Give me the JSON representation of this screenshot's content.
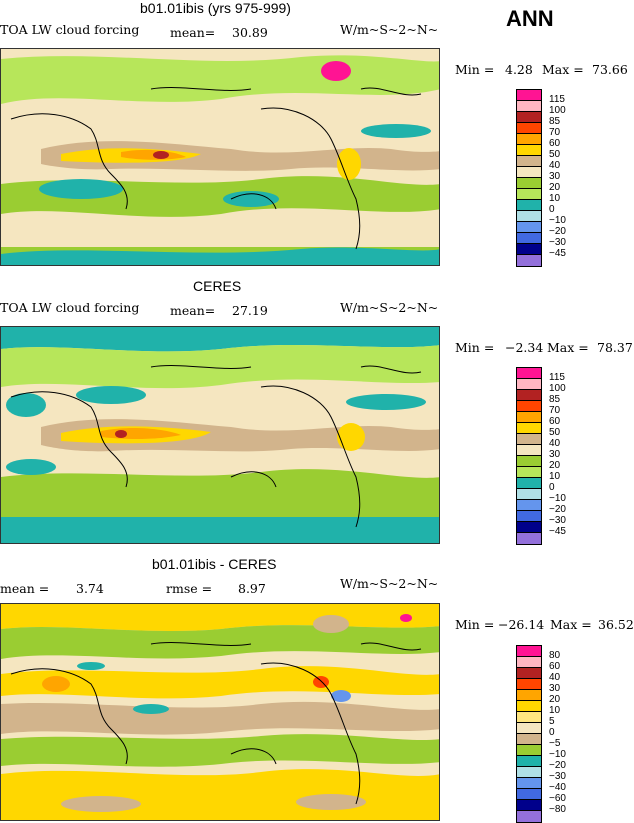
{
  "page": {
    "season": "ANN"
  },
  "chart_data": [
    {
      "type": "heatmap",
      "title": "b01.01ibis (yrs 975-999)",
      "field": "TOA LW cloud forcing",
      "units": "W/m~S~2~N~",
      "stat1_label": "mean=",
      "stat1_value": "30.89",
      "min_label": "Min =",
      "min_value": "4.28",
      "max_label": "Max =",
      "max_value": "73.66",
      "legend_levels": [
        "115",
        "100",
        "85",
        "70",
        "60",
        "50",
        "40",
        "30",
        "20",
        "10",
        "0",
        "−10",
        "−20",
        "−30",
        "−45"
      ],
      "legend_colors": [
        "#ff1493",
        "#ffb6c1",
        "#b22222",
        "#ff4500",
        "#ffa500",
        "#ffd700",
        "#d2b48c",
        "#f5e6c0",
        "#9acd32",
        "#b7e65a",
        "#20b2aa",
        "#b0e0e6",
        "#6495ed",
        "#4169e1",
        "#00008b",
        "#9370db"
      ]
    },
    {
      "type": "heatmap",
      "title": "CERES",
      "field": "TOA LW cloud forcing",
      "units": "W/m~S~2~N~",
      "stat1_label": "mean=",
      "stat1_value": "27.19",
      "min_label": "Min =",
      "min_value": "−2.34",
      "max_label": "Max =",
      "max_value": "78.37",
      "legend_levels": [
        "115",
        "100",
        "85",
        "70",
        "60",
        "50",
        "40",
        "30",
        "20",
        "10",
        "0",
        "−10",
        "−20",
        "−30",
        "−45"
      ],
      "legend_colors": [
        "#ff1493",
        "#ffb6c1",
        "#b22222",
        "#ff4500",
        "#ffa500",
        "#ffd700",
        "#d2b48c",
        "#f5e6c0",
        "#9acd32",
        "#b7e65a",
        "#20b2aa",
        "#b0e0e6",
        "#6495ed",
        "#4169e1",
        "#00008b",
        "#9370db"
      ]
    },
    {
      "type": "heatmap",
      "title": "b01.01ibis - CERES",
      "field": "",
      "units": "W/m~S~2~N~",
      "stat1_label": "mean =",
      "stat1_value": "3.74",
      "stat2_label": "rmse =",
      "stat2_value": "8.97",
      "min_label": "Min =",
      "min_value": "−26.14",
      "max_label": "Max =",
      "max_value": "36.52",
      "legend_levels": [
        "80",
        "60",
        "40",
        "30",
        "20",
        "10",
        "5",
        "0",
        "−5",
        "−10",
        "−20",
        "−30",
        "−40",
        "−60",
        "−80"
      ],
      "legend_colors": [
        "#ff1493",
        "#ffb6c1",
        "#b22222",
        "#ff4500",
        "#ffa500",
        "#ffd700",
        "#ffe680",
        "#f5e6c0",
        "#d2b48c",
        "#9acd32",
        "#20b2aa",
        "#b0e0e6",
        "#6495ed",
        "#4169e1",
        "#00008b",
        "#9370db"
      ]
    }
  ]
}
